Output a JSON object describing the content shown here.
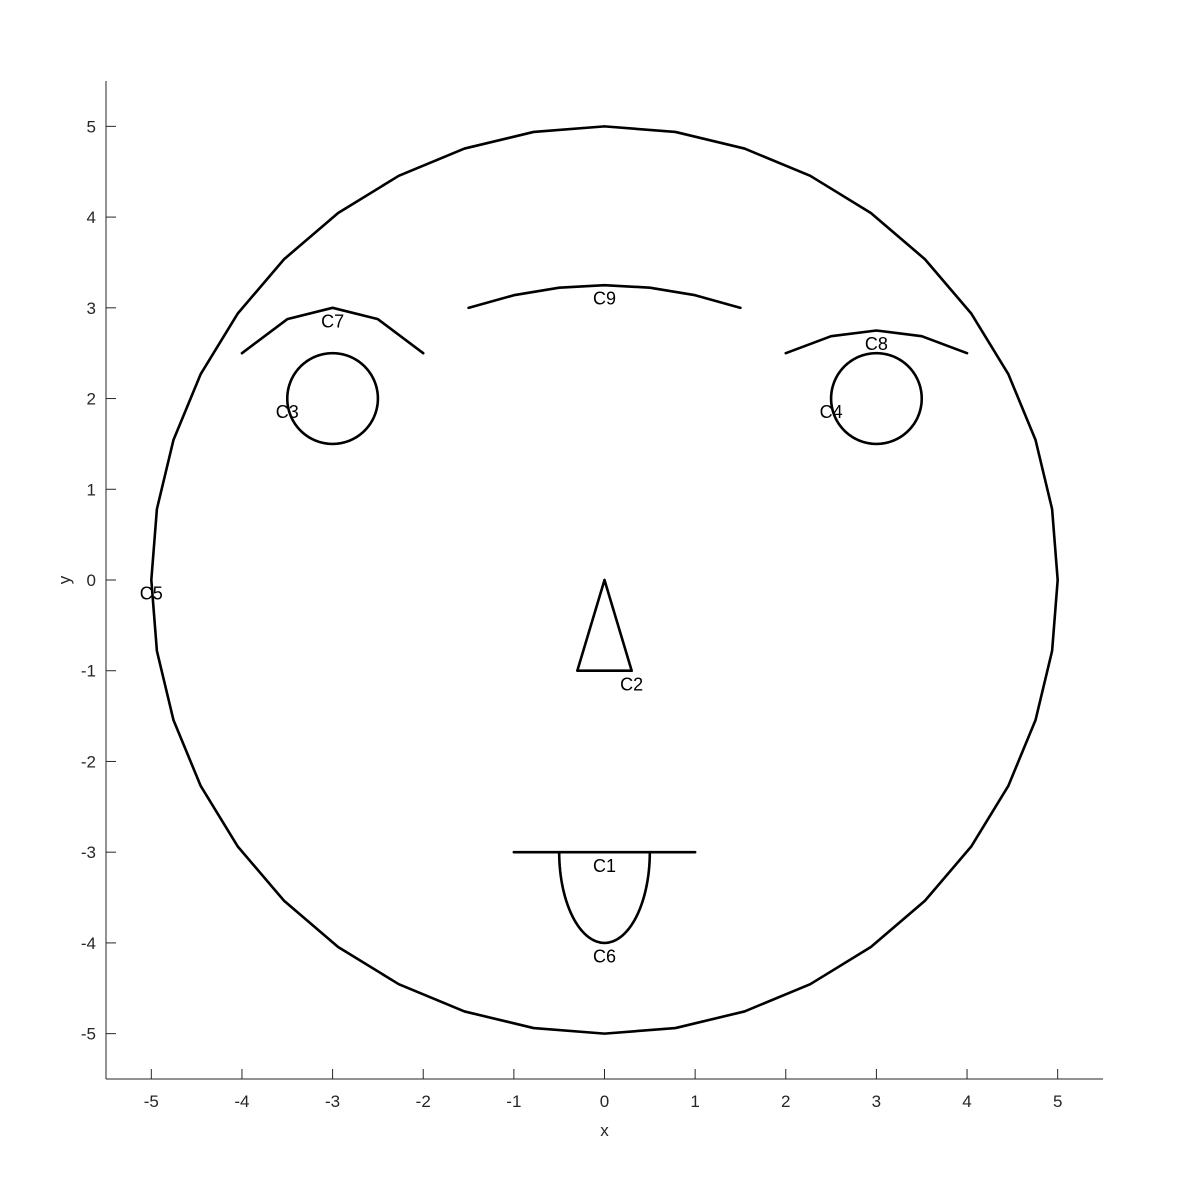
{
  "chart_data": {
    "type": "line",
    "title": "",
    "xlabel": "x",
    "ylabel": "y",
    "xlim": [
      -5.5,
      5.5
    ],
    "ylim": [
      -5.5,
      5.5
    ],
    "xticks": [
      -5,
      -4,
      -3,
      -2,
      -1,
      0,
      1,
      2,
      3,
      4,
      5
    ],
    "yticks": [
      -5,
      -4,
      -3,
      -2,
      -1,
      0,
      1,
      2,
      3,
      4,
      5
    ],
    "grid": false,
    "line_color": "#000000",
    "series": [
      {
        "name": "C1",
        "shape": "segment",
        "points": [
          [
            -1,
            -3
          ],
          [
            1,
            -3
          ]
        ],
        "label_pos": [
          0,
          -3.15
        ]
      },
      {
        "name": "C2",
        "shape": "triangle",
        "points": [
          [
            0,
            0
          ],
          [
            -0.3,
            -1
          ],
          [
            0.3,
            -1
          ],
          [
            0,
            0
          ]
        ],
        "label_pos": [
          0.3,
          -1.15
        ]
      },
      {
        "name": "C3",
        "shape": "circle",
        "center": [
          -3,
          2
        ],
        "radius": 0.5,
        "label_pos": [
          -3.5,
          1.85
        ]
      },
      {
        "name": "C4",
        "shape": "circle",
        "center": [
          3,
          2
        ],
        "radius": 0.5,
        "label_pos": [
          2.5,
          1.85
        ]
      },
      {
        "name": "C5",
        "shape": "circle",
        "center": [
          0,
          0
        ],
        "radius": 5,
        "segments": 40,
        "label_pos": [
          -5,
          -0.15
        ]
      },
      {
        "name": "C6",
        "shape": "half-ellipse",
        "center": [
          0,
          -3
        ],
        "rx": 0.5,
        "ry": 1,
        "label_pos": [
          0,
          -4.15
        ]
      },
      {
        "name": "C7",
        "shape": "arc",
        "points": [
          [
            -4,
            2.5
          ],
          [
            -3.5,
            2.875
          ],
          [
            -3,
            3
          ],
          [
            -2.5,
            2.875
          ],
          [
            -2,
            2.5
          ]
        ],
        "label_pos": [
          -3,
          2.85
        ]
      },
      {
        "name": "C8",
        "shape": "arc",
        "points": [
          [
            2,
            2.5
          ],
          [
            2.5,
            2.6875
          ],
          [
            3,
            2.75
          ],
          [
            3.5,
            2.6875
          ],
          [
            4,
            2.5
          ]
        ],
        "label_pos": [
          3,
          2.6
        ]
      },
      {
        "name": "C9",
        "shape": "arc",
        "points": [
          [
            -1.5,
            3
          ],
          [
            -1,
            3.139
          ],
          [
            -0.5,
            3.222
          ],
          [
            0,
            3.25
          ],
          [
            0.5,
            3.222
          ],
          [
            1,
            3.139
          ],
          [
            1.5,
            3
          ]
        ],
        "label_pos": [
          0,
          3.1
        ]
      }
    ]
  }
}
